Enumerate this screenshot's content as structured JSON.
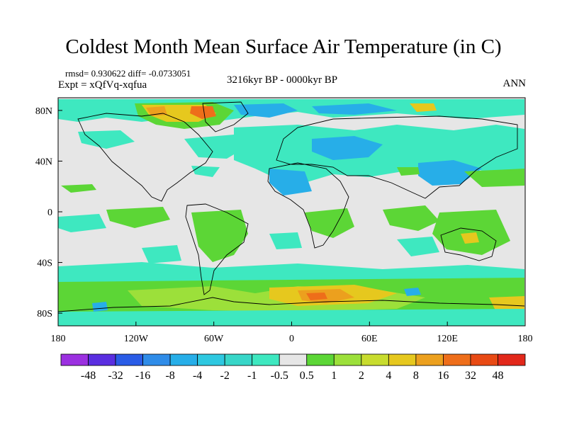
{
  "title": "Coldest Month Mean Surface Air Temperature (in C)",
  "stats_text": "rmsd= 0.930622 diff= -0.0733051",
  "experiment_text": "Expt = xQfVq-xqfua",
  "period_text": "3216kyr BP - 0000kyr BP",
  "season_text": "ANN",
  "lat_ticks": [
    {
      "label": "80N",
      "value": 80
    },
    {
      "label": "40N",
      "value": 40
    },
    {
      "label": "0",
      "value": 0
    },
    {
      "label": "40S",
      "value": -40
    },
    {
      "label": "80S",
      "value": -80
    }
  ],
  "lon_ticks": [
    {
      "label": "180",
      "value": -180
    },
    {
      "label": "120W",
      "value": -120
    },
    {
      "label": "60W",
      "value": -60
    },
    {
      "label": "0",
      "value": 0
    },
    {
      "label": "60E",
      "value": 60
    },
    {
      "label": "120E",
      "value": 120
    },
    {
      "label": "180",
      "value": 180
    }
  ],
  "colorbar": {
    "colors": [
      "#9b30e0",
      "#5a2ee0",
      "#2a5ce6",
      "#2f8ce8",
      "#27aee8",
      "#2ec8e0",
      "#37d6c8",
      "#3ee8c0",
      "#e6e6e6",
      "#5cd636",
      "#9ce03a",
      "#c8dc2e",
      "#e6c81e",
      "#eca01e",
      "#ee6e1a",
      "#e84a14",
      "#e2281a"
    ],
    "labels": [
      "-48",
      "-32",
      "-16",
      "-8",
      "-4",
      "-2",
      "-1",
      "-0.5",
      "0.5",
      "1",
      "2",
      "4",
      "8",
      "16",
      "32",
      "48"
    ]
  },
  "palette": {
    "background": "#e6e6e6",
    "neg_light": "#3ee8c0",
    "neg_mid": "#27aee8",
    "neg_dark": "#2a5ce6",
    "pos_light": "#5cd636",
    "pos_mid": "#9ce03a",
    "pos_warm": "#e6c81e",
    "pos_hot": "#ee6e1a"
  }
}
